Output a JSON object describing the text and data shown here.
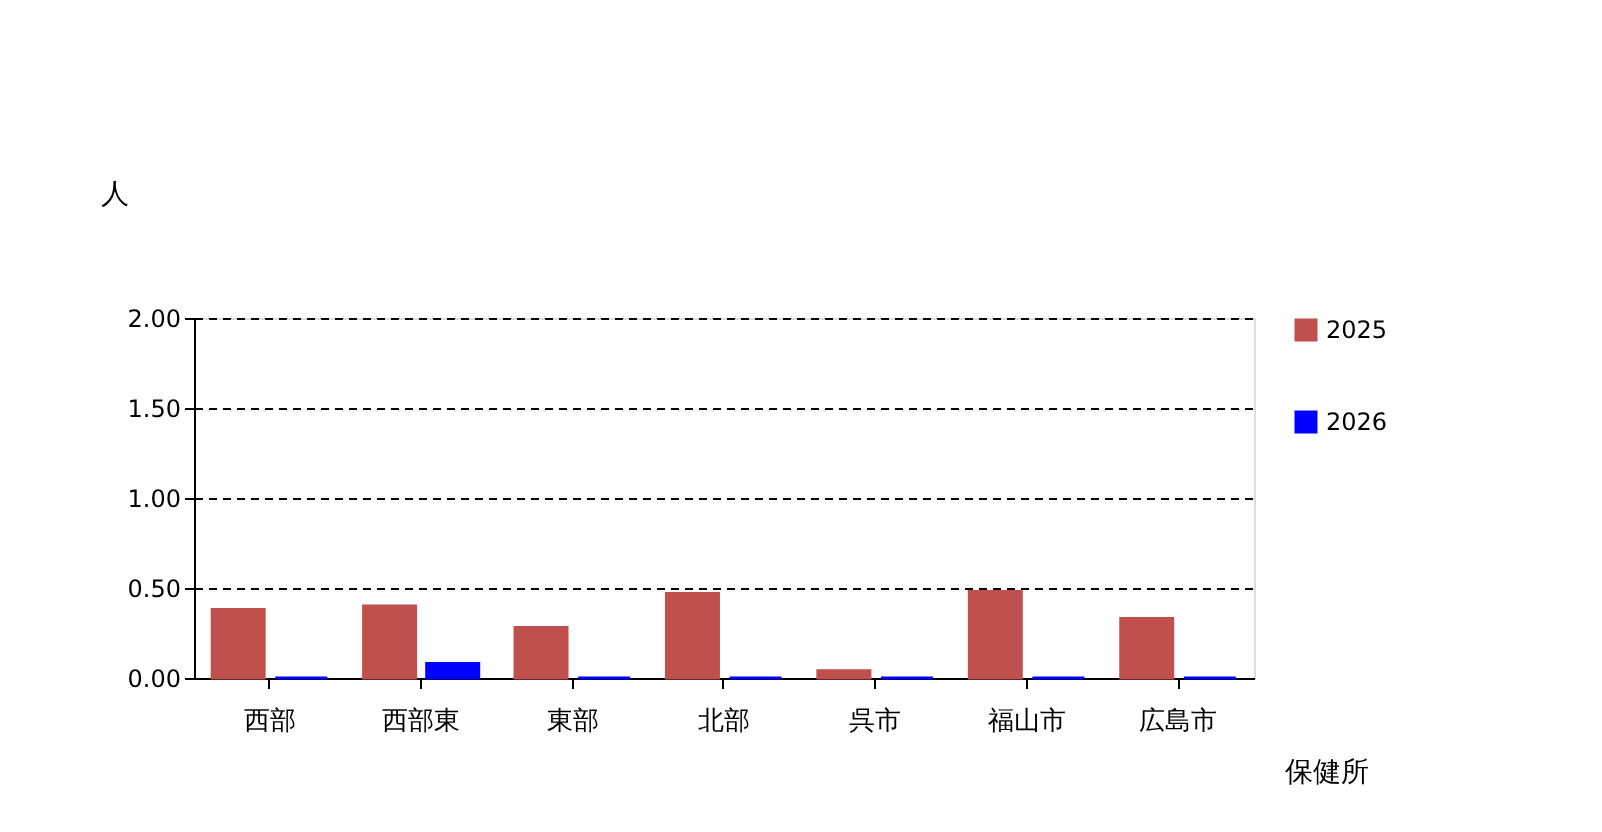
{
  "chart_data": {
    "type": "bar",
    "ylabel": "人",
    "xlabel": "保健所",
    "categories": [
      "西部",
      "西部東",
      "東部",
      "北部",
      "呉市",
      "福山市",
      "広島市"
    ],
    "series": [
      {
        "name": "2025",
        "color": "#c0504d",
        "values": [
          0.38,
          0.4,
          0.28,
          0.47,
          0.04,
          0.48,
          0.33
        ]
      },
      {
        "name": "2026",
        "color": "#0000ff",
        "values": [
          0,
          0.08,
          0,
          0,
          0,
          0,
          0
        ]
      }
    ],
    "ylim": [
      0,
      2
    ],
    "yticks": [
      {
        "value": 0,
        "label": "0.00"
      },
      {
        "value": 0.5,
        "label": "0.50"
      },
      {
        "value": 1,
        "label": "1.00"
      },
      {
        "value": 1.5,
        "label": "1.50"
      },
      {
        "value": 2,
        "label": "2.00"
      }
    ],
    "grid": "y",
    "legend": "top right"
  }
}
